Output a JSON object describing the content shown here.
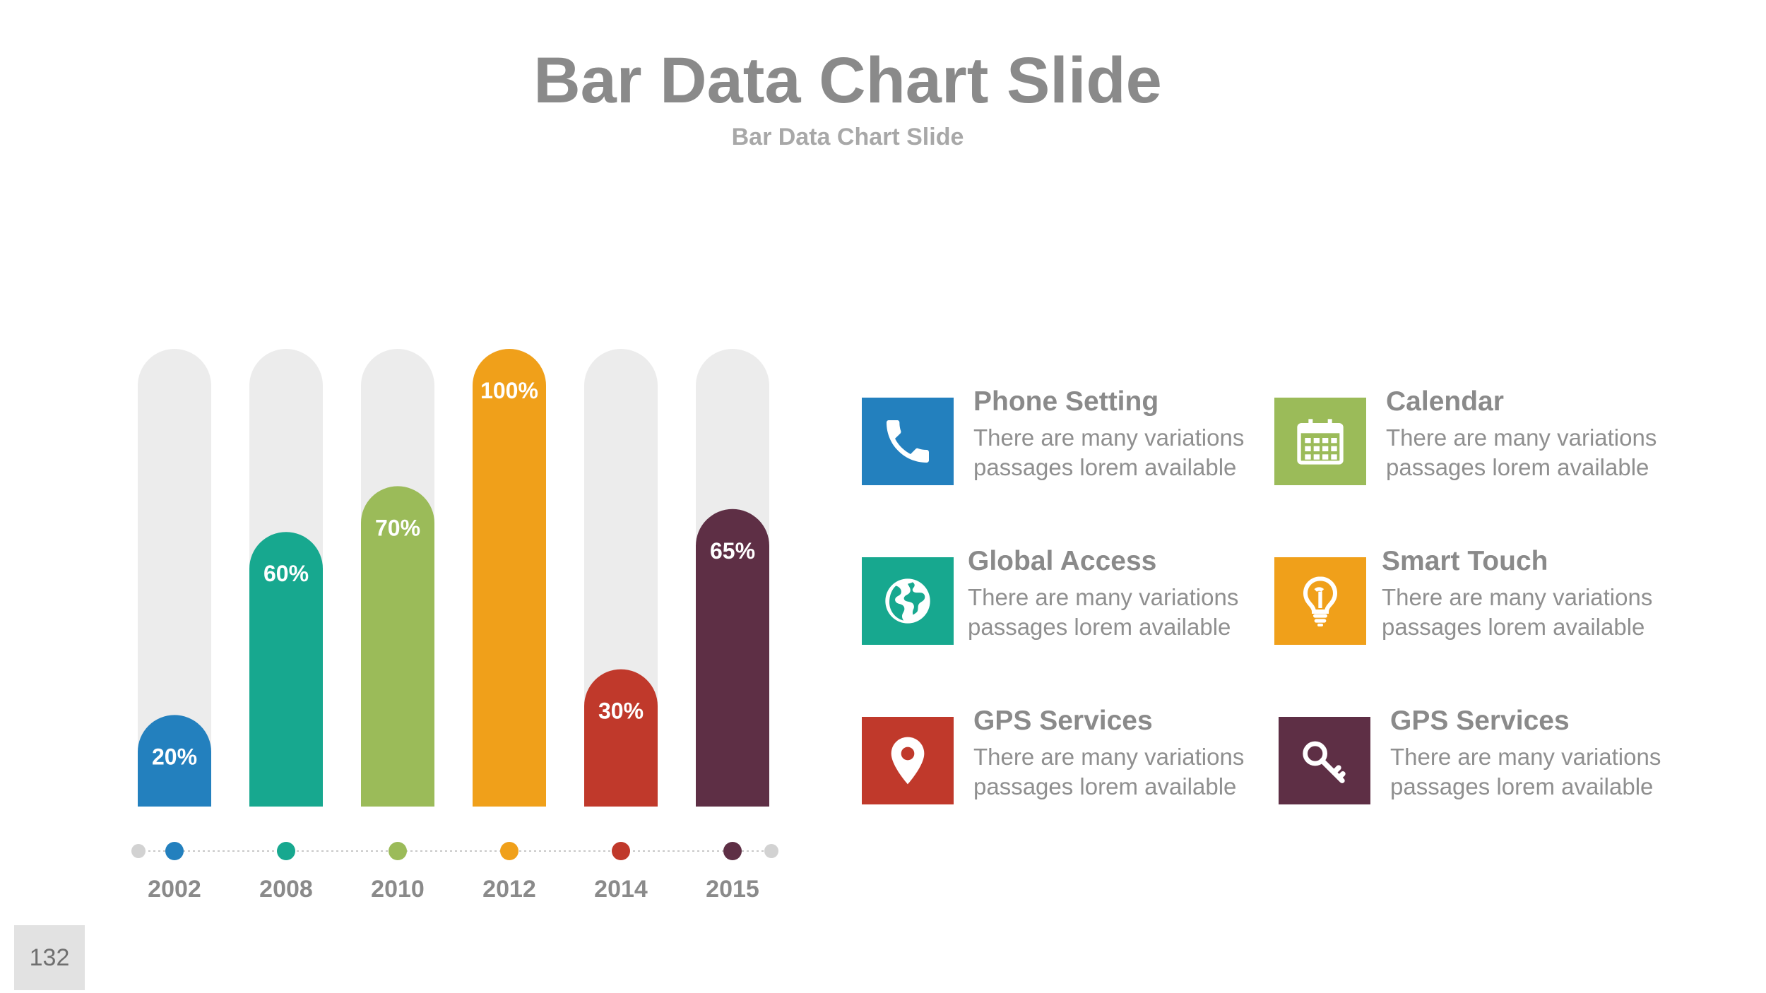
{
  "header": {
    "title": "Bar Data Chart Slide",
    "subtitle": "Bar Data Chart Slide"
  },
  "chart_data": {
    "type": "bar",
    "categories": [
      "2002",
      "2008",
      "2010",
      "2012",
      "2014",
      "2015"
    ],
    "values": [
      20,
      60,
      70,
      100,
      30,
      65
    ],
    "data_labels": [
      "20%",
      "60%",
      "70%",
      "100%",
      "30%",
      "65%"
    ],
    "colors": [
      "#2380be",
      "#17a88f",
      "#9bbb59",
      "#f0a01a",
      "#c0392b",
      "#5e2f45"
    ],
    "track_color": "#ececec",
    "ylim": [
      0,
      100
    ],
    "title": "",
    "xlabel": "",
    "ylabel": ""
  },
  "features": [
    {
      "title": "Phone Setting",
      "desc": "There are many variations passages lorem available",
      "icon": "phone-icon",
      "color": "#2380be"
    },
    {
      "title": "Calendar",
      "desc": "There are many variations passages lorem available",
      "icon": "calendar-icon",
      "color": "#9bbb59"
    },
    {
      "title": "Global Access",
      "desc": "There are many variations passages lorem available",
      "icon": "globe-icon",
      "color": "#17a88f"
    },
    {
      "title": "Smart Touch",
      "desc": "There are many variations passages lorem available",
      "icon": "lightbulb-icon",
      "color": "#f0a01a"
    },
    {
      "title": "GPS Services",
      "desc": "There are many variations passages lorem available",
      "icon": "map-pin-icon",
      "color": "#c0392b"
    },
    {
      "title": "GPS Services",
      "desc": "There are many variations passages lorem available",
      "icon": "key-icon",
      "color": "#5e2f45"
    }
  ],
  "footer": {
    "slide_number": "132"
  }
}
